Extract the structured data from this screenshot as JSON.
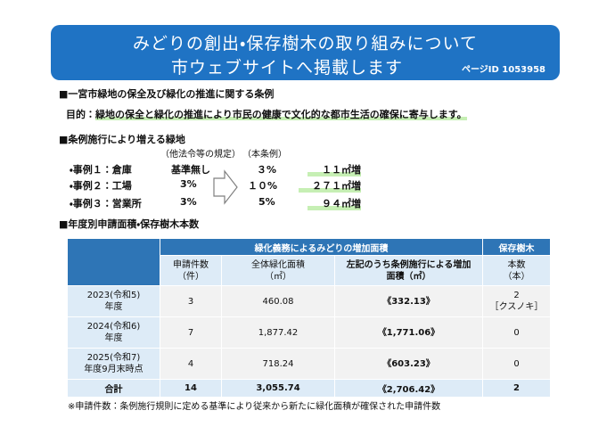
{
  "header": {
    "title_line1": "みどりの創出・保存樹木の取り組みについて",
    "title_line2": "市ウェブサイトへ掲載します",
    "page_id": "ページID 1053958"
  },
  "section1": {
    "heading": "■一宮市緑地の保全及び緑化の推進に関する条例",
    "purpose_label": "目的：",
    "purpose": "緑地の保全と緑化の推進により市民の健康で文化的な都市生活の確保に寄与します。"
  },
  "section2": {
    "heading": "■条例施行により増える緑地",
    "other_label": "（他法令等の規定）",
    "this_label": "（本条例）",
    "cases": [
      {
        "label": "・事例１：倉庫",
        "other": "基準無し",
        "this": "３%",
        "increase": "１１㎡増"
      },
      {
        "label": "・事例２：工場",
        "other": "3%",
        "this": "１０%",
        "increase": "２７１㎡増"
      },
      {
        "label": "・事例３：営業所",
        "other": "3%",
        "this": "5%",
        "increase": "９４㎡増"
      }
    ]
  },
  "section3": {
    "heading": "■年度別申請面積・保存樹木本数"
  },
  "table": {
    "group_headers": [
      "緑化義務によるみどりの増加面積",
      "保存樹木"
    ],
    "columns": [
      "申請件数\n（件）",
      "全体緑化面積\n（㎡）",
      "左記のうち条例施行による増加\n面積（㎡）",
      "本数\n（本）"
    ],
    "rows": [
      [
        "2023(令和5)\n年度",
        "3",
        "460.08",
        "《332.13》",
        "2\n［クスノキ］"
      ],
      [
        "2024(令和6)\n年度",
        "7",
        "1,877.42",
        "《1,771.06》",
        "0"
      ],
      [
        "2025(令和7)\n年度9月末時点",
        "4",
        "718.24",
        "《603.23》",
        "0"
      ]
    ],
    "total": [
      "合計",
      "14",
      "3,055.74",
      "《2,706.42》",
      "2"
    ]
  },
  "footnote": "※申請件数：条例施行規則に定める基準により従来から新たに緑化面積が確保された申請件数"
}
